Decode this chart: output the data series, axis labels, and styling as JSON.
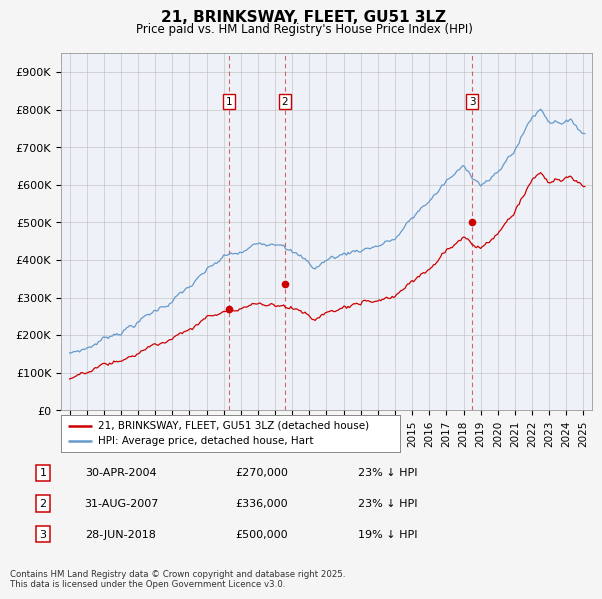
{
  "title": "21, BRINKSWAY, FLEET, GU51 3LZ",
  "subtitle": "Price paid vs. HM Land Registry's House Price Index (HPI)",
  "hpi_label": "HPI: Average price, detached house, Hart",
  "property_label": "21, BRINKSWAY, FLEET, GU51 3LZ (detached house)",
  "sale_color": "#cc0000",
  "hpi_color": "#6699cc",
  "background_color": "#f5f5f5",
  "plot_bg": "#eef2f8",
  "ylim": [
    0,
    950000
  ],
  "yticks": [
    0,
    100000,
    200000,
    300000,
    400000,
    500000,
    600000,
    700000,
    800000,
    900000
  ],
  "ytick_labels": [
    "£0",
    "£100K",
    "£200K",
    "£300K",
    "£400K",
    "£500K",
    "£600K",
    "£700K",
    "£800K",
    "£900K"
  ],
  "sale1_date": 2004.33,
  "sale1_price": 270000,
  "sale1_label": "1",
  "sale1_text": "30-APR-2004",
  "sale1_price_text": "£270,000",
  "sale1_hpi_text": "23% ↓ HPI",
  "sale2_date": 2007.58,
  "sale2_price": 336000,
  "sale2_label": "2",
  "sale2_text": "31-AUG-2007",
  "sale2_price_text": "£336,000",
  "sale2_hpi_text": "23% ↓ HPI",
  "sale3_date": 2018.5,
  "sale3_price": 500000,
  "sale3_label": "3",
  "sale3_text": "28-JUN-2018",
  "sale3_price_text": "£500,000",
  "sale3_hpi_text": "19% ↓ HPI",
  "footer": "Contains HM Land Registry data © Crown copyright and database right 2025.\nThis data is licensed under the Open Government Licence v3.0.",
  "xmin": 1994.5,
  "xmax": 2025.5
}
